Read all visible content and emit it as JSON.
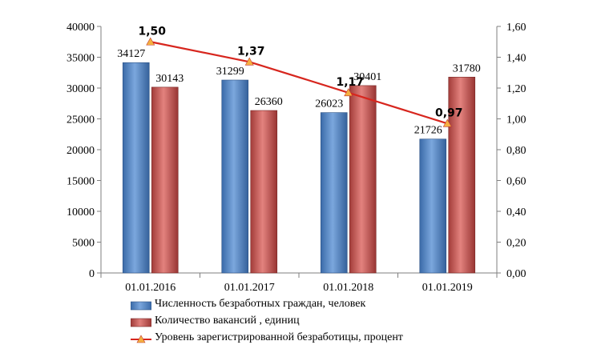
{
  "chart_data": {
    "type": "bar",
    "categories": [
      "01.01.2016",
      "01.01.2017",
      "01.01.2018",
      "01.01.2019"
    ],
    "series": [
      {
        "name": "Численность безработных граждан, человек",
        "kind": "bar",
        "axis": "left",
        "values": [
          34127,
          31299,
          26023,
          21726
        ],
        "labels": [
          "34127",
          "31299",
          "26023",
          "21726"
        ],
        "color": "#4F81BD"
      },
      {
        "name": "Количество вакансий , единиц",
        "kind": "bar",
        "axis": "left",
        "values": [
          30143,
          26360,
          30401,
          31780
        ],
        "labels": [
          "30143",
          "26360",
          "30401",
          "31780"
        ],
        "color": "#C0504D"
      },
      {
        "name": "Уровень зарегистрированной безработицы, процент",
        "kind": "line",
        "axis": "right",
        "values": [
          1.5,
          1.37,
          1.17,
          0.97
        ],
        "labels": [
          "1,50",
          "1,37",
          "1,17",
          "0,97"
        ],
        "color": "#D7261E",
        "marker_color": "#F5B041"
      }
    ],
    "y_left": {
      "ylim": [
        0,
        40000
      ],
      "ticks": [
        "0",
        "5000",
        "10000",
        "15000",
        "20000",
        "25000",
        "30000",
        "35000",
        "40000"
      ]
    },
    "y_right": {
      "ylim": [
        0,
        1.6
      ],
      "ticks": [
        "0,00",
        "0,20",
        "0,40",
        "0,60",
        "0,80",
        "1,00",
        "1,20",
        "1,40",
        "1,60"
      ]
    },
    "grid": false,
    "legend": "bottom"
  }
}
